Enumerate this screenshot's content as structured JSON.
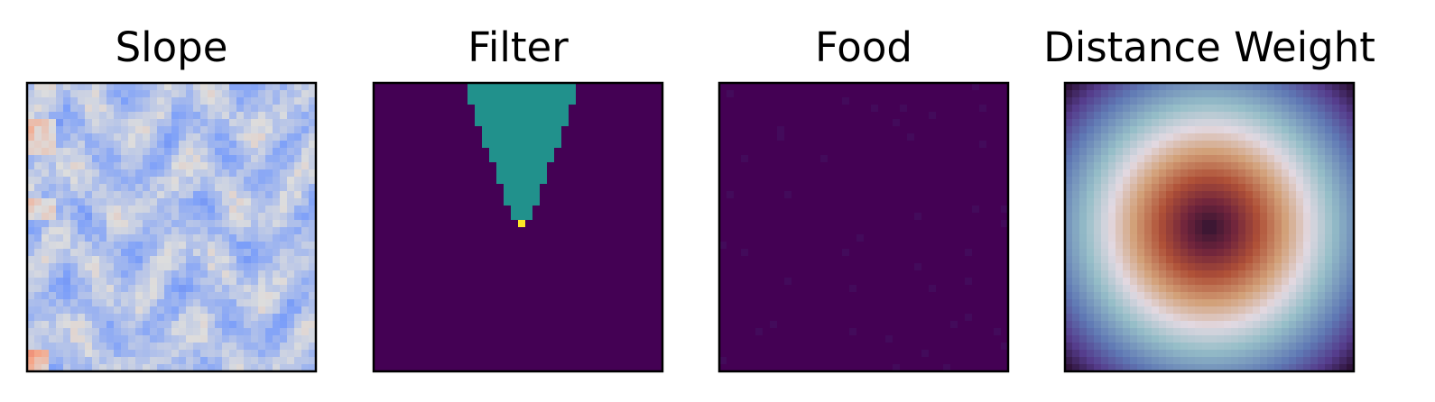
{
  "figure": {
    "panels": [
      {
        "title": "Slope",
        "colormap": "coolwarm"
      },
      {
        "title": "Filter",
        "colormap": "viridis"
      },
      {
        "title": "Food",
        "colormap": "viridis"
      },
      {
        "title": "Distance Weight",
        "colormap": "twilight_shifted"
      }
    ]
  },
  "chart_data": [
    {
      "type": "heatmap",
      "title": "Slope",
      "colormap": "coolwarm",
      "grid_size": [
        40,
        40
      ],
      "pattern": "noisy terrain slope field, mostly light-to-mid blue with darker blue ridge lines and a few pale orange spots on the left edge",
      "xticks": [],
      "yticks": [],
      "grid": false
    },
    {
      "type": "heatmap",
      "title": "Filter",
      "colormap": "viridis",
      "grid_size": [
        40,
        40
      ],
      "background_value": 0.0,
      "cone_value": 0.5,
      "apex_value": 1.0,
      "cone": {
        "apex_cell": [
          20,
          19
        ],
        "top_row": 0,
        "top_col_range": [
          13,
          28
        ],
        "direction": "up"
      },
      "xticks": [],
      "yticks": [],
      "grid": false
    },
    {
      "type": "heatmap",
      "title": "Food",
      "colormap": "viridis",
      "grid_size": [
        40,
        40
      ],
      "background_value": 0.0,
      "pattern": "sparse scattered faint food cells on dark background",
      "xticks": [],
      "yticks": [],
      "grid": false
    },
    {
      "type": "heatmap",
      "title": "Distance Weight",
      "colormap": "twilight_shifted",
      "grid_size": [
        40,
        40
      ],
      "pattern": "radial: dark center, orange-red ring, pale white ring, blue band, purple corners",
      "xticks": [],
      "yticks": [],
      "grid": false
    }
  ]
}
